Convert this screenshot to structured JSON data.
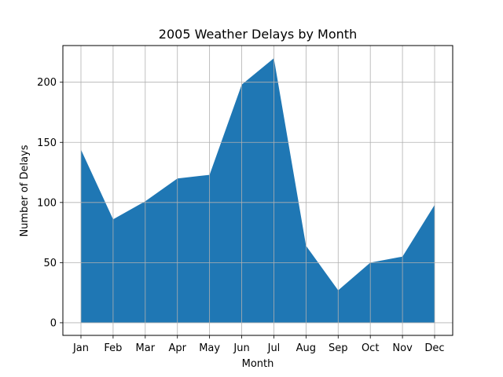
{
  "chart_data": {
    "type": "area",
    "title": "2005 Weather Delays by Month",
    "xlabel": "Month",
    "ylabel": "Number of Delays",
    "categories": [
      "Jan",
      "Feb",
      "Mar",
      "Apr",
      "May",
      "Jun",
      "Jul",
      "Aug",
      "Sep",
      "Oct",
      "Nov",
      "Dec"
    ],
    "values": [
      144,
      86,
      101,
      120,
      123,
      198,
      220,
      64,
      27,
      50,
      55,
      98
    ],
    "yticks": [
      0,
      50,
      100,
      150,
      200
    ],
    "ylim": [
      -10.5,
      230.5
    ],
    "grid": true,
    "fill_color": "#1f77b4"
  }
}
